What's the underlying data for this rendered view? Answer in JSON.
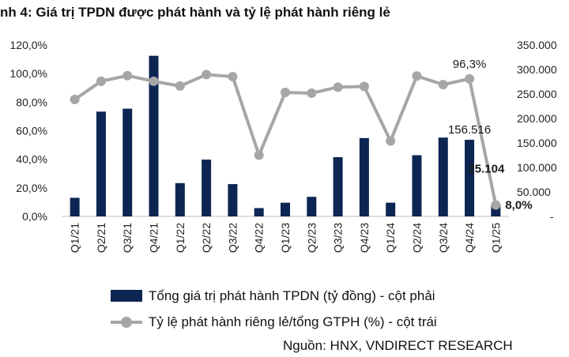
{
  "title": "nh 4: Giá trị TPDN được phát hành và tỷ lệ phát hành riêng lẻ",
  "source": "Nguồn: HNX, VNDIRECT RESEARCH",
  "chart_data": {
    "type": "bar",
    "categories": [
      "Q1/21",
      "Q2/21",
      "Q3/21",
      "Q4/21",
      "Q1/22",
      "Q2/22",
      "Q3/22",
      "Q4/22",
      "Q1/23",
      "Q2/23",
      "Q3/23",
      "Q4/23",
      "Q1/24",
      "Q2/24",
      "Q3/24",
      "Q4/24",
      "Q1/25"
    ],
    "series": [
      {
        "name": "Tổng giá trị phát hành TPDN (tỷ đồng) - cột phải",
        "type": "bar",
        "axis": "right",
        "color": "#0d2552",
        "values": [
          38000,
          214000,
          220000,
          328000,
          68000,
          116000,
          66000,
          17000,
          28000,
          40000,
          121000,
          160000,
          28000,
          125000,
          161000,
          156516,
          25104
        ]
      },
      {
        "name": "Tỷ lệ phát hành riêng lẻ/tổng GTPH (%) - cột trái",
        "type": "line",
        "axis": "left",
        "color": "#a6a6a6",
        "values": [
          81.9,
          94.6,
          98.6,
          94.6,
          91.3,
          99.3,
          97.9,
          42.9,
          86.8,
          86.3,
          90.5,
          91.0,
          52.8,
          98.3,
          92.3,
          96.3,
          8.0
        ]
      }
    ],
    "ylim_left": [
      0,
      120
    ],
    "yticks_left": [
      "0,0%",
      "20,0%",
      "40,0%",
      "60,0%",
      "80,0%",
      "100,0%",
      "120,0%"
    ],
    "ylim_right": [
      0,
      350000
    ],
    "yticks_right": [
      "-",
      "50.000",
      "100.000",
      "150.000",
      "200.000",
      "250.000",
      "300.000",
      "350.000"
    ],
    "annotations": [
      {
        "label": "96,3%",
        "series": 1,
        "index": 15
      },
      {
        "label": "156.516",
        "series": 0,
        "index": 15
      },
      {
        "label": "25.104",
        "series": 0,
        "index": 16
      },
      {
        "label": "8,0%",
        "series": 1,
        "index": 16
      }
    ],
    "grid": false,
    "legend": "bottom"
  }
}
